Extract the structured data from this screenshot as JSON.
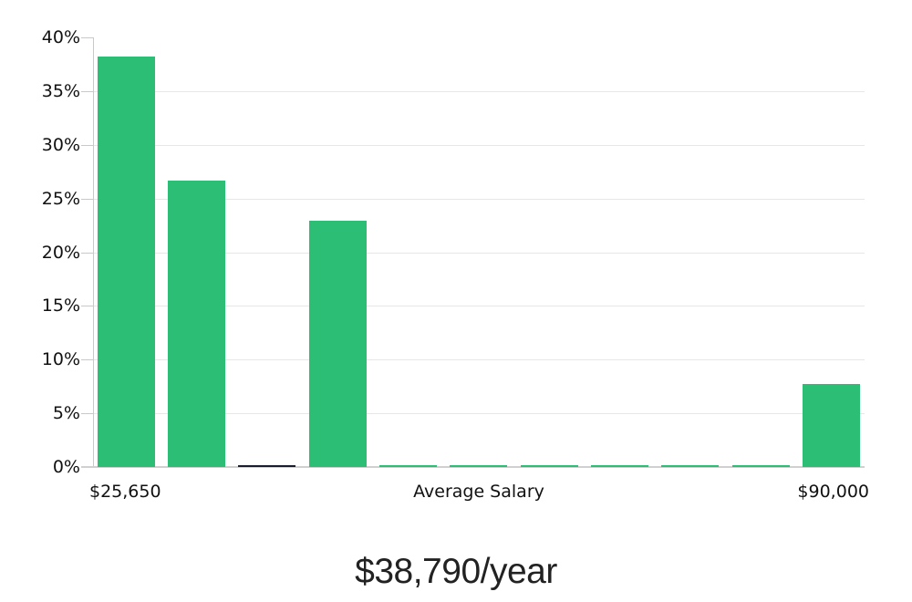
{
  "chart_data": {
    "type": "bar",
    "title": "$38,790/year",
    "ylim": [
      0,
      40
    ],
    "y_unit": "percent",
    "grid": true,
    "legend": false,
    "y_ticks": [
      {
        "value": 0,
        "label": "0%"
      },
      {
        "value": 5,
        "label": "5%"
      },
      {
        "value": 10,
        "label": "10%"
      },
      {
        "value": 15,
        "label": "15%"
      },
      {
        "value": 20,
        "label": "20%"
      },
      {
        "value": 25,
        "label": "25%"
      },
      {
        "value": 30,
        "label": "30%"
      },
      {
        "value": 35,
        "label": "35%"
      },
      {
        "value": 40,
        "label": "40%"
      }
    ],
    "x_axis_labels": [
      {
        "text": "$25,650",
        "position": "left"
      },
      {
        "text": "Average Salary",
        "position": "center"
      },
      {
        "text": "$90,000",
        "position": "right"
      }
    ],
    "bars": [
      {
        "value": 38.2,
        "color": "#2dbe76"
      },
      {
        "value": 26.7,
        "color": "#2dbe76"
      },
      {
        "value": 0.15,
        "color": "#1a1d2e"
      },
      {
        "value": 22.9,
        "color": "#2dbe76"
      },
      {
        "value": 0.15,
        "color": "#2dbe76"
      },
      {
        "value": 0.15,
        "color": "#2dbe76"
      },
      {
        "value": 0.15,
        "color": "#2dbe76"
      },
      {
        "value": 0.15,
        "color": "#2dbe76"
      },
      {
        "value": 0.15,
        "color": "#2dbe76"
      },
      {
        "value": 0.15,
        "color": "#2dbe76"
      },
      {
        "value": 7.7,
        "color": "#2dbe76"
      }
    ],
    "colors": {
      "bar_green": "#2dbe76",
      "bar_highlight_dark": "#1a1d2e",
      "gridline": "#e7e7e7",
      "axis": "#c9c9c9",
      "label_text": "#111111",
      "title_text": "#222222"
    }
  }
}
